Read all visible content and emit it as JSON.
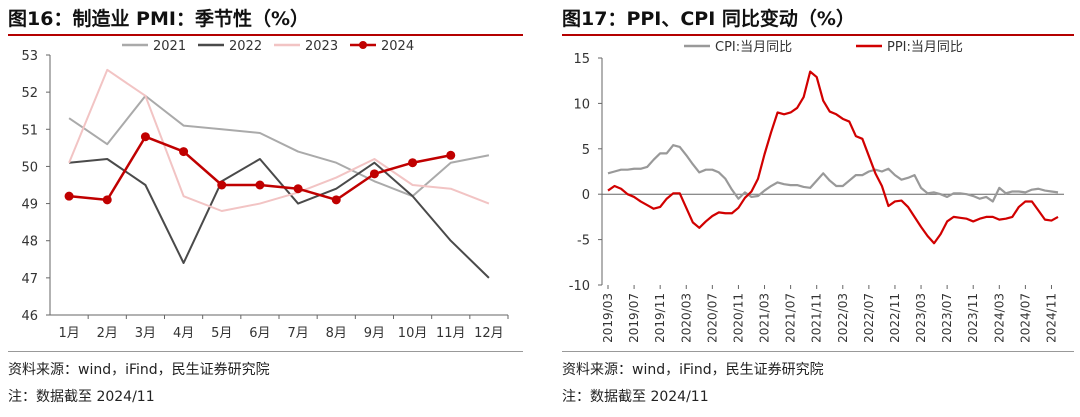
{
  "charts": [
    {
      "title": "图16：制造业 PMI：季节性（%）",
      "source": "资料来源：wind，iFind，民生证券研究院",
      "note": "注：数据截至 2024/11"
    },
    {
      "title": "图17：PPI、CPI 同比变动（%）",
      "source": "资料来源：wind，iFind，民生证券研究院",
      "note": "注：数据截至 2024/11"
    }
  ],
  "chart_data": [
    {
      "type": "line",
      "title": "制造业 PMI：季节性（%）",
      "categories": [
        "1月",
        "2月",
        "3月",
        "4月",
        "5月",
        "6月",
        "7月",
        "8月",
        "9月",
        "10月",
        "11月",
        "12月"
      ],
      "ylim": [
        46,
        53
      ],
      "yticks": [
        46,
        47,
        48,
        49,
        50,
        51,
        52,
        53
      ],
      "legend_position": "top",
      "series": [
        {
          "name": "2021",
          "color": "#aaaaaa",
          "markers": false,
          "values": [
            51.3,
            50.6,
            51.9,
            51.1,
            51.0,
            50.9,
            50.4,
            50.1,
            49.6,
            49.2,
            50.1,
            50.3
          ]
        },
        {
          "name": "2022",
          "color": "#4a4a4a",
          "markers": false,
          "values": [
            50.1,
            50.2,
            49.5,
            47.4,
            49.6,
            50.2,
            49.0,
            49.4,
            50.1,
            49.2,
            48.0,
            47.0
          ]
        },
        {
          "name": "2023",
          "color": "#f2c4c4",
          "markers": false,
          "values": [
            50.1,
            52.6,
            51.9,
            49.2,
            48.8,
            49.0,
            49.3,
            49.7,
            50.2,
            49.5,
            49.4,
            49.0
          ]
        },
        {
          "name": "2024",
          "color": "#c00000",
          "markers": true,
          "values": [
            49.2,
            49.1,
            50.8,
            50.4,
            49.5,
            49.5,
            49.4,
            49.1,
            49.8,
            50.1,
            50.3,
            null
          ]
        }
      ]
    },
    {
      "type": "line",
      "title": "PPI、CPI 同比变动（%）",
      "ylim": [
        -10,
        15
      ],
      "yticks": [
        -10,
        -5,
        0,
        5,
        10,
        15
      ],
      "xtick_labels": [
        "2019/03",
        "2019/07",
        "2019/11",
        "2020/03",
        "2020/07",
        "2020/11",
        "2021/03",
        "2021/07",
        "2021/11",
        "2022/03",
        "2022/07",
        "2022/11",
        "2023/03",
        "2023/07",
        "2023/11",
        "2024/03",
        "2024/07",
        "2024/11"
      ],
      "x_start": "2019/03",
      "x_end": "2024/11",
      "legend_position": "top",
      "series": [
        {
          "name": "CPI:当月同比",
          "color": "#999999",
          "values": [
            2.3,
            2.5,
            2.7,
            2.7,
            2.8,
            2.8,
            3.0,
            3.8,
            4.5,
            4.5,
            5.4,
            5.2,
            4.3,
            3.3,
            2.4,
            2.7,
            2.7,
            2.4,
            1.7,
            0.5,
            -0.5,
            0.2,
            -0.3,
            -0.2,
            0.4,
            0.9,
            1.3,
            1.1,
            1.0,
            1.0,
            0.8,
            0.7,
            1.5,
            2.3,
            1.5,
            0.9,
            0.9,
            1.5,
            2.1,
            2.1,
            2.5,
            2.7,
            2.5,
            2.8,
            2.1,
            1.6,
            1.8,
            2.1,
            0.7,
            0.1,
            0.2,
            0.0,
            -0.3,
            0.1,
            0.1,
            0.0,
            -0.2,
            -0.5,
            -0.3,
            -0.8,
            0.7,
            0.1,
            0.3,
            0.3,
            0.2,
            0.5,
            0.6,
            0.4,
            0.3,
            0.2
          ]
        },
        {
          "name": "PPI:当月同比",
          "color": "#d10000",
          "values": [
            0.4,
            0.9,
            0.6,
            0.0,
            -0.3,
            -0.8,
            -1.2,
            -1.6,
            -1.4,
            -0.5,
            0.1,
            0.1,
            -1.5,
            -3.1,
            -3.7,
            -3.0,
            -2.4,
            -2.0,
            -2.1,
            -2.1,
            -1.5,
            -0.4,
            0.3,
            1.7,
            4.4,
            6.8,
            9.0,
            8.8,
            9.0,
            9.5,
            10.7,
            13.5,
            12.9,
            10.3,
            9.1,
            8.8,
            8.3,
            8.0,
            6.4,
            6.1,
            4.2,
            2.3,
            0.9,
            -1.3,
            -0.8,
            -0.7,
            -1.4,
            -2.5,
            -3.6,
            -4.6,
            -5.4,
            -4.4,
            -3.0,
            -2.5,
            -2.6,
            -2.7,
            -3.0,
            -2.7,
            -2.5,
            -2.5,
            -2.8,
            -2.7,
            -2.5,
            -1.4,
            -0.8,
            -0.8,
            -1.8,
            -2.8,
            -2.9,
            -2.5
          ]
        }
      ]
    }
  ]
}
